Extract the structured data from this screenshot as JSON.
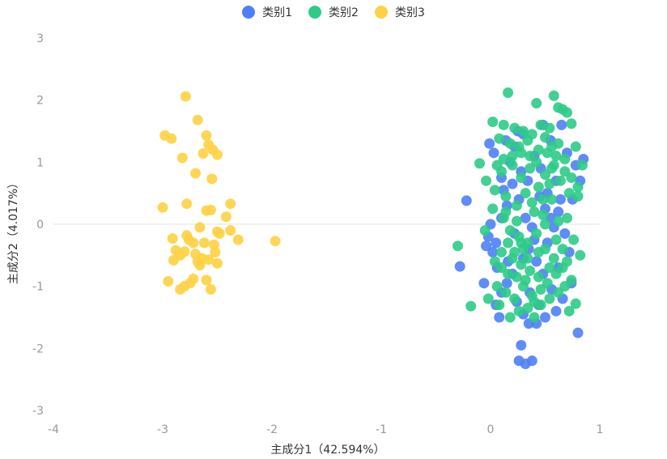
{
  "chart_data": {
    "type": "scatter",
    "xlabel": "主成分1（42.594%）",
    "ylabel": "主成分2（4.017%）",
    "xlim": [
      -4,
      1
    ],
    "ylim": [
      -3,
      3
    ],
    "x_ticks": [
      "-4",
      "-3",
      "-2",
      "-1",
      "0",
      "1"
    ],
    "y_ticks": [
      "3",
      "2",
      "1",
      "0",
      "-1",
      "-2",
      "-3"
    ],
    "grid": false,
    "zero_line": true,
    "legend_position": "top-center",
    "series": [
      {
        "name": "类别1",
        "color": "#4e7ff5",
        "points": [
          [
            -0.01,
            1.3
          ],
          [
            0.03,
            1.15
          ],
          [
            -0.22,
            0.38
          ],
          [
            -0.28,
            -0.68
          ],
          [
            -0.06,
            -0.95
          ],
          [
            0.05,
            -0.3
          ],
          [
            0.1,
            0.1
          ],
          [
            0.15,
            0.3
          ],
          [
            0.2,
            0.65
          ],
          [
            0.25,
            1.5
          ],
          [
            0.3,
            -1.45
          ],
          [
            0.35,
            -1.6
          ],
          [
            0.28,
            -1.95
          ],
          [
            0.32,
            -2.25
          ],
          [
            0.26,
            -2.2
          ],
          [
            0.38,
            -2.2
          ],
          [
            0.42,
            -1.6
          ],
          [
            0.5,
            -1.5
          ],
          [
            0.6,
            -1.4
          ],
          [
            0.8,
            -1.75
          ],
          [
            0.85,
            1.05
          ],
          [
            0.82,
            0.7
          ],
          [
            0.78,
            0.95
          ],
          [
            0.65,
            1.6
          ],
          [
            0.55,
            1.35
          ],
          [
            0.45,
            0.45
          ],
          [
            0.5,
            0.25
          ],
          [
            0.55,
            0.1
          ],
          [
            0.58,
            -0.05
          ],
          [
            0.4,
            -0.25
          ],
          [
            0.35,
            -0.4
          ],
          [
            0.3,
            -0.55
          ],
          [
            0.2,
            -0.8
          ],
          [
            0.15,
            -0.95
          ],
          [
            0.1,
            -1.1
          ],
          [
            0.05,
            -1.3
          ],
          [
            0.08,
            -1.5
          ],
          [
            0.02,
            -0.45
          ],
          [
            -0.02,
            -0.2
          ],
          [
            0.0,
            0.0
          ],
          [
            0.12,
            0.55
          ],
          [
            0.18,
            1.0
          ],
          [
            0.22,
            1.25
          ],
          [
            0.28,
            0.85
          ],
          [
            0.34,
            0.7
          ],
          [
            0.4,
            1.1
          ],
          [
            0.46,
            0.9
          ],
          [
            0.52,
            0.5
          ],
          [
            0.62,
            0.2
          ],
          [
            0.68,
            -0.15
          ],
          [
            0.72,
            -0.45
          ],
          [
            0.74,
            -0.95
          ],
          [
            0.66,
            -1.2
          ],
          [
            0.56,
            -1.05
          ],
          [
            0.48,
            -0.8
          ],
          [
            0.44,
            -1.3
          ],
          [
            0.36,
            -1.1
          ],
          [
            0.24,
            -1.25
          ],
          [
            0.16,
            -0.6
          ],
          [
            0.06,
            -0.7
          ],
          [
            -0.04,
            -0.35
          ],
          [
            0.1,
            0.75
          ],
          [
            0.26,
            0.4
          ],
          [
            0.32,
            0.1
          ],
          [
            0.38,
            -0.05
          ],
          [
            0.6,
            0.7
          ],
          [
            0.7,
            1.15
          ],
          [
            0.75,
            0.4
          ],
          [
            0.48,
            1.6
          ],
          [
            0.3,
            1.45
          ],
          [
            0.14,
            1.35
          ],
          [
            0.22,
            -0.15
          ],
          [
            0.62,
            -0.7
          ],
          [
            0.52,
            -0.3
          ],
          [
            0.42,
            -0.6
          ],
          [
            0.64,
            0.4
          ]
        ]
      },
      {
        "name": "类别2",
        "color": "#2ecb87",
        "points": [
          [
            0.16,
            2.12
          ],
          [
            0.58,
            2.07
          ],
          [
            0.42,
            1.95
          ],
          [
            0.66,
            1.85
          ],
          [
            0.7,
            1.8
          ],
          [
            0.74,
            1.62
          ],
          [
            0.62,
            1.88
          ],
          [
            0.02,
            1.65
          ],
          [
            0.12,
            1.6
          ],
          [
            0.22,
            1.55
          ],
          [
            0.3,
            1.5
          ],
          [
            0.38,
            1.45
          ],
          [
            0.46,
            1.6
          ],
          [
            0.54,
            1.55
          ],
          [
            0.08,
            1.38
          ],
          [
            0.18,
            1.3
          ],
          [
            0.26,
            1.25
          ],
          [
            0.34,
            1.35
          ],
          [
            0.44,
            1.2
          ],
          [
            0.52,
            1.15
          ],
          [
            0.6,
            1.1
          ],
          [
            0.68,
            1.05
          ],
          [
            0.78,
            1.25
          ],
          [
            0.84,
            0.95
          ],
          [
            -0.1,
            0.98
          ],
          [
            -0.04,
            0.7
          ],
          [
            0.04,
            0.55
          ],
          [
            0.1,
            0.85
          ],
          [
            0.2,
            0.95
          ],
          [
            0.28,
            0.75
          ],
          [
            0.36,
            0.9
          ],
          [
            0.44,
            0.6
          ],
          [
            0.5,
            0.8
          ],
          [
            0.58,
            0.95
          ],
          [
            0.64,
            0.7
          ],
          [
            0.72,
            0.5
          ],
          [
            0.8,
            0.45
          ],
          [
            0.14,
            0.45
          ],
          [
            0.24,
            0.3
          ],
          [
            0.32,
            0.5
          ],
          [
            0.4,
            0.2
          ],
          [
            0.48,
            0.15
          ],
          [
            0.56,
            0.4
          ],
          [
            0.62,
            0.05
          ],
          [
            0.7,
            0.1
          ],
          [
            0.76,
            -0.25
          ],
          [
            0.82,
            -0.5
          ],
          [
            0.12,
            0.1
          ],
          [
            0.18,
            -0.1
          ],
          [
            0.26,
            -0.2
          ],
          [
            0.34,
            -0.3
          ],
          [
            0.42,
            -0.15
          ],
          [
            0.5,
            -0.4
          ],
          [
            0.58,
            -0.55
          ],
          [
            0.66,
            -0.7
          ],
          [
            0.04,
            -0.6
          ],
          [
            0.1,
            -0.45
          ],
          [
            0.2,
            -0.55
          ],
          [
            0.28,
            -0.65
          ],
          [
            0.36,
            -0.75
          ],
          [
            0.44,
            -0.85
          ],
          [
            0.52,
            -0.95
          ],
          [
            0.6,
            -0.8
          ],
          [
            0.68,
            -1.0
          ],
          [
            0.74,
            -0.9
          ],
          [
            0.06,
            -1.0
          ],
          [
            0.14,
            -1.1
          ],
          [
            0.22,
            -1.2
          ],
          [
            0.3,
            -1.0
          ],
          [
            0.38,
            -1.15
          ],
          [
            0.46,
            -1.3
          ],
          [
            0.54,
            -1.2
          ],
          [
            0.62,
            -1.1
          ],
          [
            0.72,
            -1.4
          ],
          [
            0.78,
            -1.28
          ],
          [
            0.18,
            -1.5
          ],
          [
            0.26,
            -1.4
          ],
          [
            0.34,
            -1.35
          ],
          [
            0.4,
            -1.5
          ],
          [
            0.08,
            -1.3
          ],
          [
            -0.02,
            -1.2
          ],
          [
            -0.18,
            -1.32
          ],
          [
            -0.3,
            -0.35
          ],
          [
            -0.05,
            -0.1
          ],
          [
            0.02,
            0.25
          ],
          [
            0.24,
            0.05
          ],
          [
            0.3,
            -0.4
          ],
          [
            0.16,
            -0.3
          ],
          [
            0.48,
            0.4
          ],
          [
            0.54,
            0.65
          ],
          [
            0.42,
            1.0
          ],
          [
            0.36,
            1.1
          ],
          [
            0.28,
            1.15
          ],
          [
            0.5,
            1.4
          ],
          [
            0.56,
            1.25
          ],
          [
            0.2,
            1.1
          ],
          [
            0.12,
            1.05
          ],
          [
            0.06,
            0.95
          ],
          [
            0.14,
            0.2
          ],
          [
            0.38,
            0.35
          ],
          [
            0.44,
            -0.45
          ],
          [
            0.32,
            -0.9
          ],
          [
            0.24,
            -0.85
          ],
          [
            0.16,
            -0.8
          ],
          [
            0.1,
            -0.7
          ],
          [
            0.6,
            -0.25
          ],
          [
            0.66,
            -0.4
          ],
          [
            0.7,
            -0.6
          ],
          [
            0.54,
            -0.7
          ],
          [
            0.46,
            -1.05
          ],
          [
            0.4,
            -1.25
          ],
          [
            0.34,
            -0.55
          ],
          [
            0.28,
            -0.3
          ],
          [
            0.22,
            -0.45
          ],
          [
            0.5,
            0.0
          ],
          [
            0.56,
            0.9
          ],
          [
            0.62,
            1.3
          ],
          [
            0.68,
            0.85
          ],
          [
            0.74,
            0.75
          ],
          [
            0.8,
            0.6
          ]
        ]
      },
      {
        "name": "类别3",
        "color": "#fed244",
        "points": [
          [
            -2.79,
            2.06
          ],
          [
            -2.68,
            1.68
          ],
          [
            -2.6,
            1.43
          ],
          [
            -2.58,
            1.28
          ],
          [
            -2.54,
            1.2
          ],
          [
            -2.5,
            1.12
          ],
          [
            -2.63,
            1.14
          ],
          [
            -2.82,
            1.07
          ],
          [
            -2.92,
            1.38
          ],
          [
            -2.98,
            1.43
          ],
          [
            -2.55,
            0.73
          ],
          [
            -2.7,
            0.82
          ],
          [
            -2.78,
            0.33
          ],
          [
            -2.6,
            0.22
          ],
          [
            -2.56,
            0.23
          ],
          [
            -2.42,
            0.12
          ],
          [
            -2.38,
            0.33
          ],
          [
            -3.0,
            0.27
          ],
          [
            -2.66,
            -0.05
          ],
          [
            -2.5,
            -0.12
          ],
          [
            -2.48,
            -0.15
          ],
          [
            -2.38,
            -0.1
          ],
          [
            -2.31,
            -0.25
          ],
          [
            -2.91,
            -0.23
          ],
          [
            -2.76,
            -0.25
          ],
          [
            -2.72,
            -0.3
          ],
          [
            -2.62,
            -0.3
          ],
          [
            -2.53,
            -0.33
          ],
          [
            -2.88,
            -0.42
          ],
          [
            -2.8,
            -0.44
          ],
          [
            -2.7,
            -0.48
          ],
          [
            -2.64,
            -0.55
          ],
          [
            -2.58,
            -0.57
          ],
          [
            -2.52,
            -0.45
          ],
          [
            -2.84,
            -0.5
          ],
          [
            -2.9,
            -0.58
          ],
          [
            -2.68,
            -0.6
          ],
          [
            -2.66,
            -0.66
          ],
          [
            -2.5,
            -0.63
          ],
          [
            -1.97,
            -0.27
          ],
          [
            -2.95,
            -0.92
          ],
          [
            -2.75,
            -0.95
          ],
          [
            -2.8,
            -1.0
          ],
          [
            -2.84,
            -1.05
          ],
          [
            -2.6,
            -0.9
          ],
          [
            -2.56,
            -1.05
          ],
          [
            -2.72,
            -0.88
          ],
          [
            -2.78,
            -0.18
          ]
        ]
      }
    ]
  }
}
